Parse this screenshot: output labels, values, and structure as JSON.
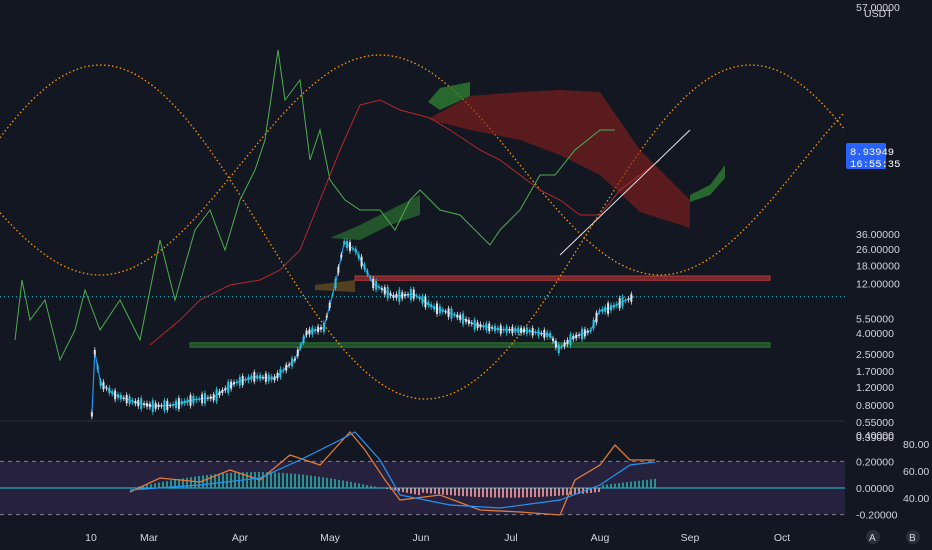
{
  "chart_data": {
    "type": "candlestick",
    "pair_label": "USDT",
    "top_partial_label": "57.00000",
    "price_axis": {
      "scale": "log",
      "ticks": [
        "36.00000",
        "26.00000",
        "18.00000",
        "12.00000",
        "5.50000",
        "4.00000",
        "2.50000",
        "1.70000",
        "1.20000",
        "0.80000",
        "0.55000",
        "0.39000"
      ]
    },
    "current_price": "8.93949",
    "countdown": "16:55:35",
    "time_axis": {
      "ticks": [
        "10",
        "Mar",
        "Apr",
        "May",
        "Jun",
        "Jul",
        "Aug",
        "Sep",
        "Oct"
      ]
    },
    "price_series": [
      {
        "date": "Feb 10",
        "close": 0.65
      },
      {
        "date": "Feb 11",
        "close": 2.6
      },
      {
        "date": "Feb 13",
        "close": 1.3
      },
      {
        "date": "Feb 18",
        "close": 1.0
      },
      {
        "date": "Feb 25",
        "close": 0.85
      },
      {
        "date": "Mar 3",
        "close": 0.78
      },
      {
        "date": "Mar 10",
        "close": 0.8
      },
      {
        "date": "Mar 17",
        "close": 0.9
      },
      {
        "date": "Mar 24",
        "close": 0.95
      },
      {
        "date": "Mar 31",
        "close": 1.3
      },
      {
        "date": "Apr 7",
        "close": 1.5
      },
      {
        "date": "Apr 14",
        "close": 1.45
      },
      {
        "date": "Apr 21",
        "close": 2.2
      },
      {
        "date": "Apr 25",
        "close": 4.0
      },
      {
        "date": "May 1",
        "close": 4.5
      },
      {
        "date": "May 5",
        "close": 12.0
      },
      {
        "date": "May 8",
        "close": 30.0
      },
      {
        "date": "May 12",
        "close": 25.0
      },
      {
        "date": "May 18",
        "close": 12.0
      },
      {
        "date": "May 25",
        "close": 9.0
      },
      {
        "date": "Jun 1",
        "close": 9.5
      },
      {
        "date": "Jun 8",
        "close": 7.0
      },
      {
        "date": "Jun 15",
        "close": 6.0
      },
      {
        "date": "Jun 22",
        "close": 4.8
      },
      {
        "date": "Jul 1",
        "close": 4.3
      },
      {
        "date": "Jul 10",
        "close": 4.2
      },
      {
        "date": "Jul 18",
        "close": 3.8
      },
      {
        "date": "Jul 21",
        "close": 2.8
      },
      {
        "date": "Jul 26",
        "close": 3.6
      },
      {
        "date": "Aug 1",
        "close": 4.2
      },
      {
        "date": "Aug 4",
        "close": 6.5
      },
      {
        "date": "Aug 8",
        "close": 7.0
      },
      {
        "date": "Aug 12",
        "close": 8.0
      },
      {
        "date": "Aug 16",
        "close": 8.94
      }
    ],
    "zones": [
      {
        "kind": "resistance",
        "low": 12.9,
        "high": 14.2,
        "color": "#c23b3b"
      },
      {
        "kind": "support",
        "low": 2.9,
        "high": 3.2,
        "color": "#2e7d32"
      }
    ],
    "oscillator": {
      "left_ticks": [
        "0.40000",
        "0.20000",
        "0.00000",
        "-0.20000"
      ],
      "right_ticks": [
        "80.00",
        "60.00",
        "40.00"
      ],
      "band_upper": 0.2,
      "band_lower": -0.2
    },
    "badges": [
      "A",
      "B"
    ],
    "colors": {
      "background": "#131722",
      "candle": "#26c6da",
      "ichimoku_cloud_bear": "#8b1e1e",
      "ichimoku_cloud_bull": "#2e7d32",
      "lagging_span": "#4caf50",
      "sine_curve": "#ff9800",
      "price_line": "#2196f3",
      "rsi_line": "#e07a3c"
    }
  }
}
